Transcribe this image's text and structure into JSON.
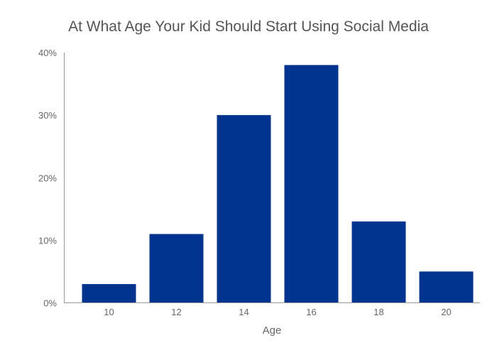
{
  "chart_data": {
    "type": "bar",
    "title": "At What Age Your Kid Should Start Using Social Media",
    "xlabel": "Age",
    "ylabel": "",
    "categories": [
      "10",
      "12",
      "14",
      "16",
      "18",
      "20"
    ],
    "values": [
      3,
      11,
      30,
      38,
      13,
      5
    ],
    "ylim": [
      0,
      40
    ],
    "yticks": [
      0,
      10,
      20,
      30,
      40
    ],
    "ytick_labels": [
      "0%",
      "10%",
      "20%",
      "30%",
      "40%"
    ],
    "grid": false,
    "legend": "none",
    "bar_color": "#00338d"
  }
}
